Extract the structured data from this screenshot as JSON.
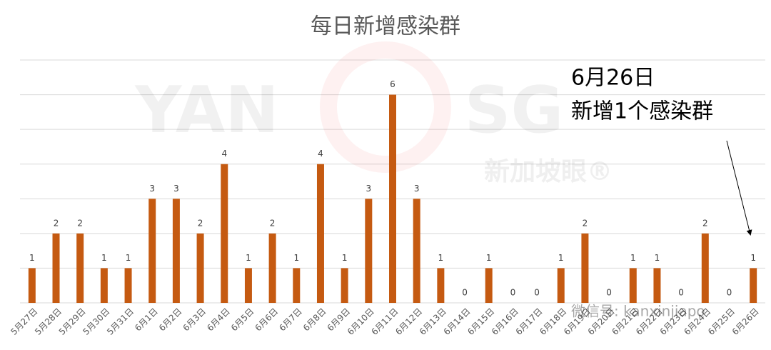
{
  "chart_data": {
    "type": "bar",
    "title": "每日新增感染群",
    "categories": [
      "5月27日",
      "5月28日",
      "5月29日",
      "5月30日",
      "5月31日",
      "6月1日",
      "6月2日",
      "6月3日",
      "6月4日",
      "6月5日",
      "6月6日",
      "6月7日",
      "6月8日",
      "6月9日",
      "6月10日",
      "6月11日",
      "6月12日",
      "6月13日",
      "6月14日",
      "6月15日",
      "6月16日",
      "6月17日",
      "6月18日",
      "6月19日",
      "6月20日",
      "6月21日",
      "6月22日",
      "6月23日",
      "6月24日",
      "6月25日",
      "6月26日"
    ],
    "values": [
      1,
      2,
      2,
      1,
      1,
      3,
      3,
      2,
      4,
      1,
      2,
      1,
      4,
      1,
      3,
      6,
      3,
      1,
      0,
      1,
      0,
      0,
      1,
      2,
      0,
      1,
      1,
      0,
      2,
      0,
      1
    ],
    "color": "#c55a11",
    "ylim": [
      0,
      7
    ],
    "yticks": [
      0,
      1,
      2,
      3,
      4,
      5,
      6,
      7
    ],
    "grid": true,
    "annotation": [
      "6月26日",
      "新增1个感染群"
    ],
    "watermark": [
      "YAN",
      "SG",
      "新加坡眼®",
      "微信号: kanxinjiapo"
    ]
  }
}
